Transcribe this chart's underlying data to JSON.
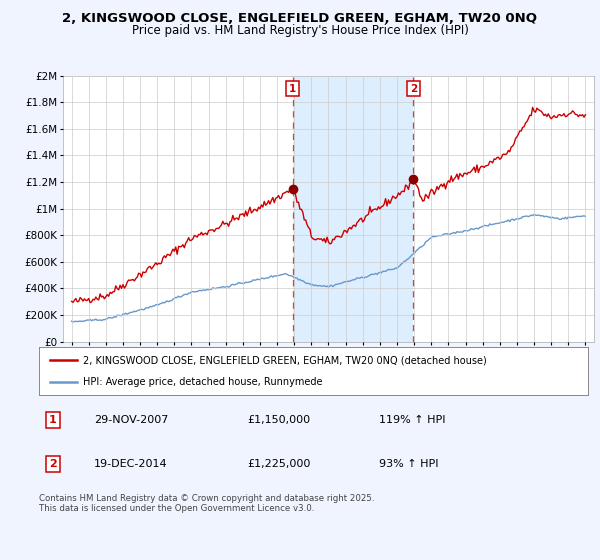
{
  "title": "2, KINGSWOOD CLOSE, ENGLEFIELD GREEN, EGHAM, TW20 0NQ",
  "subtitle": "Price paid vs. HM Land Registry's House Price Index (HPI)",
  "legend_line1": "2, KINGSWOOD CLOSE, ENGLEFIELD GREEN, EGHAM, TW20 0NQ (detached house)",
  "legend_line2": "HPI: Average price, detached house, Runnymede",
  "footer": "Contains HM Land Registry data © Crown copyright and database right 2025.\nThis data is licensed under the Open Government Licence v3.0.",
  "sale1_date": "29-NOV-2007",
  "sale1_price": "£1,150,000",
  "sale1_hpi": "119% ↑ HPI",
  "sale2_date": "19-DEC-2014",
  "sale2_price": "£1,225,000",
  "sale2_hpi": "93% ↑ HPI",
  "sale1_x": 2007.91,
  "sale2_x": 2014.96,
  "sale1_y": 1150000,
  "sale2_y": 1225000,
  "red_color": "#cc0000",
  "blue_color": "#6699cc",
  "shade_color": "#ddeeff",
  "xlim": [
    1994.5,
    2025.5
  ],
  "ylim": [
    0,
    2000000
  ],
  "yticks": [
    0,
    200000,
    400000,
    600000,
    800000,
    1000000,
    1200000,
    1400000,
    1600000,
    1800000,
    2000000
  ],
  "ytick_labels": [
    "£0",
    "£200K",
    "£400K",
    "£600K",
    "£800K",
    "£1M",
    "£1.2M",
    "£1.4M",
    "£1.6M",
    "£1.8M",
    "£2M"
  ],
  "xtick_start": 1995,
  "xtick_end": 2025,
  "fig_width": 6.0,
  "fig_height": 5.6,
  "dpi": 100
}
